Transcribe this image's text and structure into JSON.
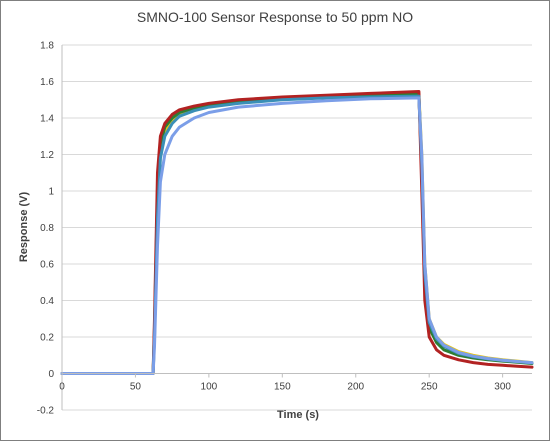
{
  "chart_data": {
    "type": "line",
    "title": "SMNO-100 Sensor Response to 50 ppm NO",
    "xlabel": "Time (s)",
    "ylabel": "Response (V)",
    "xlim": [
      0,
      320
    ],
    "ylim": [
      -0.2,
      1.8
    ],
    "x_ticks": [
      0,
      50,
      100,
      150,
      200,
      250,
      300
    ],
    "y_ticks": [
      -0.2,
      0,
      0.2,
      0.4,
      0.6,
      0.8,
      1,
      1.2,
      1.4,
      1.6,
      1.8
    ],
    "y_tick_labels": [
      "-0.2",
      "0",
      "0.2",
      "0.4",
      "0.6",
      "0.8",
      "1",
      "1.2",
      "1.4",
      "1.6",
      "1.8"
    ],
    "grid": {
      "horizontal": true,
      "vertical": false
    },
    "legend": "none",
    "series": [
      {
        "color": "#e6c619",
        "x": [
          0,
          62,
          63,
          65,
          67,
          70,
          75,
          80,
          90,
          100,
          120,
          150,
          180,
          210,
          243,
          245,
          247,
          250,
          255,
          260,
          270,
          280,
          290,
          300,
          310,
          320
        ],
        "y": [
          0,
          0,
          0.2,
          0.9,
          1.2,
          1.32,
          1.39,
          1.42,
          1.45,
          1.47,
          1.49,
          1.51,
          1.52,
          1.53,
          1.535,
          1.2,
          0.6,
          0.3,
          0.2,
          0.16,
          0.12,
          0.1,
          0.085,
          0.075,
          0.068,
          0.06
        ]
      },
      {
        "color": "#2e7d32",
        "x": [
          0,
          62,
          63,
          65,
          67,
          70,
          75,
          80,
          90,
          100,
          120,
          150,
          180,
          210,
          243,
          245,
          247,
          250,
          255,
          260,
          270,
          280,
          290,
          300,
          310,
          320
        ],
        "y": [
          0,
          0,
          0.25,
          1.0,
          1.26,
          1.35,
          1.4,
          1.43,
          1.455,
          1.47,
          1.49,
          1.505,
          1.515,
          1.525,
          1.53,
          1.1,
          0.5,
          0.25,
          0.17,
          0.13,
          0.1,
          0.085,
          0.075,
          0.068,
          0.062,
          0.055
        ]
      },
      {
        "color": "#b22222",
        "x": [
          0,
          62,
          63,
          65,
          67,
          70,
          75,
          80,
          90,
          100,
          120,
          150,
          180,
          210,
          243,
          245,
          247,
          250,
          255,
          260,
          270,
          280,
          290,
          300,
          310,
          320
        ],
        "y": [
          0,
          0,
          0.3,
          1.1,
          1.3,
          1.37,
          1.42,
          1.445,
          1.465,
          1.48,
          1.5,
          1.515,
          1.525,
          1.535,
          1.545,
          1.0,
          0.4,
          0.2,
          0.13,
          0.1,
          0.075,
          0.06,
          0.05,
          0.045,
          0.04,
          0.035
        ]
      },
      {
        "color": "#3a8fb7",
        "x": [
          0,
          62,
          63,
          65,
          67,
          70,
          75,
          80,
          90,
          100,
          120,
          150,
          180,
          210,
          243,
          245,
          247,
          250,
          255,
          260,
          270,
          280,
          290,
          300,
          310,
          320
        ],
        "y": [
          0,
          0,
          0.2,
          0.85,
          1.18,
          1.3,
          1.37,
          1.41,
          1.44,
          1.46,
          1.48,
          1.5,
          1.51,
          1.515,
          1.52,
          1.15,
          0.55,
          0.28,
          0.19,
          0.15,
          0.11,
          0.092,
          0.08,
          0.072,
          0.065,
          0.058
        ]
      },
      {
        "color": "#7b9ee8",
        "x": [
          0,
          62,
          63,
          65,
          67,
          70,
          75,
          80,
          90,
          100,
          120,
          150,
          180,
          210,
          243,
          245,
          247,
          250,
          255,
          260,
          270,
          280,
          290,
          300,
          310,
          320
        ],
        "y": [
          0,
          0,
          0.15,
          0.7,
          1.05,
          1.2,
          1.3,
          1.35,
          1.4,
          1.43,
          1.46,
          1.48,
          1.495,
          1.505,
          1.51,
          1.2,
          0.6,
          0.3,
          0.2,
          0.155,
          0.115,
          0.095,
          0.082,
          0.073,
          0.066,
          0.06
        ]
      }
    ]
  }
}
